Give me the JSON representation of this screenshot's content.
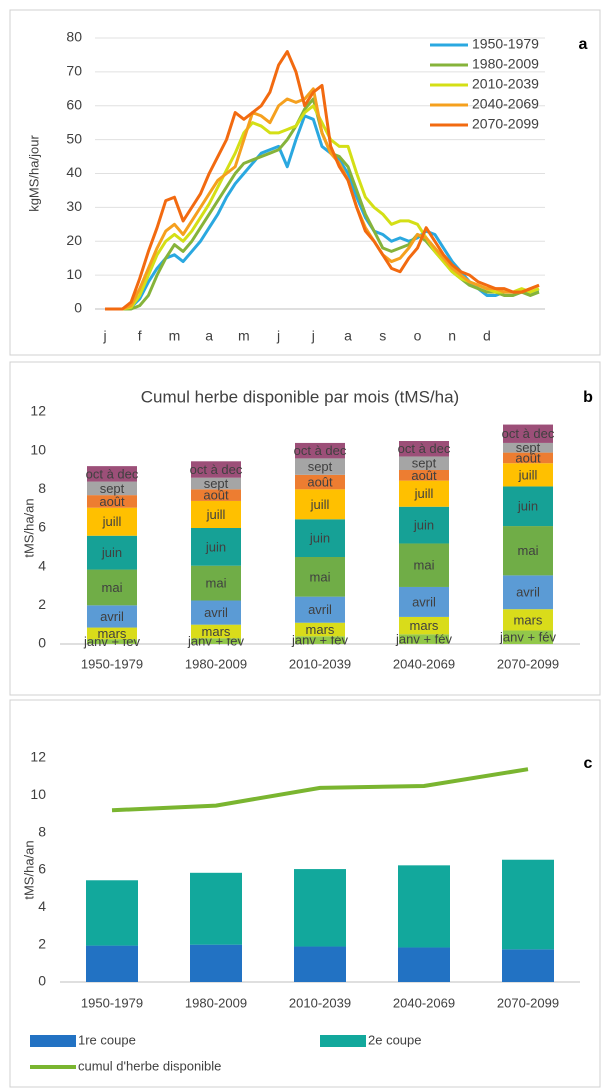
{
  "chart_data": [
    {
      "type": "line",
      "panel_label": "a",
      "ylabel": "kgMS/ha/jour",
      "categories": [
        "j",
        null,
        null,
        null,
        "f",
        null,
        null,
        null,
        "m",
        null,
        null,
        null,
        "a",
        null,
        null,
        null,
        "m",
        null,
        null,
        null,
        "j",
        null,
        null,
        null,
        "j",
        null,
        null,
        null,
        "a",
        null,
        null,
        null,
        "s",
        null,
        null,
        null,
        "o",
        null,
        null,
        null,
        "n",
        null,
        null,
        null,
        "d",
        null,
        null,
        null,
        null,
        null,
        null
      ],
      "ylim": [
        0,
        80
      ],
      "yticks": [
        0,
        10,
        20,
        30,
        40,
        50,
        60,
        70,
        80
      ],
      "grid": true,
      "legend": "top-right",
      "series": [
        {
          "name": "1950-1979",
          "color": "#2aa8e0",
          "values": [
            0,
            0,
            0,
            0.5,
            3,
            8,
            12,
            15,
            16,
            14,
            17,
            20,
            24,
            28,
            33,
            37,
            40,
            43,
            46,
            47,
            48,
            42,
            50,
            57,
            56,
            48,
            46,
            44,
            40,
            33,
            27,
            23,
            22,
            20,
            21,
            20,
            21,
            23,
            22,
            18,
            14,
            11,
            8,
            6,
            4,
            4,
            5,
            5,
            5,
            5,
            5
          ]
        },
        {
          "name": "1980-2009",
          "color": "#86b33a",
          "values": [
            0,
            0,
            0,
            0,
            1,
            4,
            10,
            15,
            19,
            17,
            20,
            24,
            28,
            32,
            36,
            40,
            43,
            44,
            45,
            46,
            47,
            50,
            54,
            59,
            62,
            52,
            46,
            45,
            42,
            35,
            28,
            23,
            18,
            17,
            18,
            19,
            22,
            20,
            17,
            14,
            11,
            9,
            7,
            6,
            5,
            5,
            4,
            4,
            5,
            4,
            5
          ]
        },
        {
          "name": "2010-2039",
          "color": "#d4df16",
          "values": [
            0,
            0,
            0,
            0.5,
            4,
            10,
            16,
            20,
            22,
            20,
            23,
            27,
            31,
            36,
            41,
            46,
            52,
            55,
            54,
            52,
            52,
            53,
            54,
            58,
            60,
            55,
            50,
            48,
            48,
            40,
            33,
            30,
            28,
            25,
            26,
            26,
            25,
            21,
            17,
            14,
            11,
            9,
            8,
            7,
            6,
            5,
            5,
            5,
            6,
            5,
            6
          ]
        },
        {
          "name": "2040-2069",
          "color": "#f5a01e",
          "values": [
            0,
            0,
            0,
            1,
            6,
            12,
            18,
            23,
            25,
            22,
            26,
            30,
            34,
            38,
            40,
            42,
            50,
            58,
            57,
            55,
            60,
            62,
            61,
            62,
            65,
            52,
            46,
            43,
            38,
            30,
            24,
            20,
            16,
            14,
            15,
            18,
            22,
            21,
            18,
            15,
            12,
            10,
            8,
            7,
            6,
            6,
            5,
            5,
            5,
            6,
            7
          ]
        },
        {
          "name": "2070-2099",
          "color": "#f26a10",
          "values": [
            0,
            0,
            0,
            2,
            9,
            17,
            24,
            32,
            33,
            26,
            30,
            34,
            40,
            45,
            50,
            58,
            56,
            58,
            60,
            64,
            72,
            76,
            70,
            60,
            64,
            66,
            48,
            42,
            38,
            30,
            23,
            20,
            16,
            12,
            11,
            15,
            18,
            24,
            20,
            16,
            13,
            11,
            10,
            8,
            7,
            6,
            6,
            5,
            5,
            6,
            7
          ]
        }
      ]
    },
    {
      "type": "bar",
      "stacked": true,
      "panel_label": "b",
      "title": "Cumul herbe disponible par mois (tMS/ha)",
      "ylabel": "tMS/ha/an",
      "categories": [
        "1950-1979",
        "1980-2009",
        "2010-2039",
        "2040-2069",
        "2070-2099"
      ],
      "ylim": [
        0,
        12
      ],
      "yticks": [
        0,
        2,
        4,
        6,
        8,
        10,
        12
      ],
      "grid": false,
      "segment_labels": true,
      "series": [
        {
          "name": "janv + fév",
          "color": "#92c84a",
          "values": [
            0.25,
            0.3,
            0.4,
            0.5,
            0.7
          ]
        },
        {
          "name": "mars",
          "color": "#d9dc1a",
          "values": [
            0.6,
            0.7,
            0.7,
            0.9,
            1.1
          ]
        },
        {
          "name": "avril",
          "color": "#5b9bd5",
          "values": [
            1.15,
            1.25,
            1.35,
            1.55,
            1.75
          ]
        },
        {
          "name": "mai",
          "color": "#70ad47",
          "values": [
            1.85,
            1.8,
            2.05,
            2.25,
            2.55
          ]
        },
        {
          "name": "juin",
          "color": "#16a196",
          "values": [
            1.75,
            1.95,
            1.95,
            1.9,
            2.05
          ]
        },
        {
          "name": "juill",
          "color": "#ffc000",
          "values": [
            1.45,
            1.4,
            1.55,
            1.35,
            1.2
          ]
        },
        {
          "name": "août",
          "color": "#ed7d31",
          "values": [
            0.65,
            0.6,
            0.75,
            0.55,
            0.55
          ]
        },
        {
          "name": "sept",
          "color": "#a5a5a5",
          "values": [
            0.7,
            0.6,
            0.85,
            0.7,
            0.5
          ]
        },
        {
          "name": "oct à dec",
          "color": "#9c4f78",
          "values": [
            0.8,
            0.85,
            0.8,
            0.8,
            0.95
          ]
        }
      ]
    },
    {
      "type": "bar",
      "stacked": true,
      "panel_label": "c",
      "ylabel": "tMS/ha/an",
      "categories": [
        "1950-1979",
        "1980-2009",
        "2010-2039",
        "2040-2069",
        "2070-2099"
      ],
      "ylim": [
        0,
        12
      ],
      "yticks": [
        0,
        2,
        4,
        6,
        8,
        10,
        12
      ],
      "grid": false,
      "legend": "bottom",
      "series": [
        {
          "name": "1re coupe",
          "color": "#2272c3",
          "values": [
            1.95,
            2.0,
            1.9,
            1.85,
            1.75
          ]
        },
        {
          "name": "2e coupe",
          "color": "#12a89c",
          "values": [
            3.5,
            3.85,
            4.15,
            4.4,
            4.8
          ]
        },
        {
          "name": "cumul d'herbe disponible",
          "type": "line",
          "color": "#7ab530",
          "values": [
            9.2,
            9.45,
            10.4,
            10.5,
            11.4
          ]
        }
      ]
    }
  ]
}
